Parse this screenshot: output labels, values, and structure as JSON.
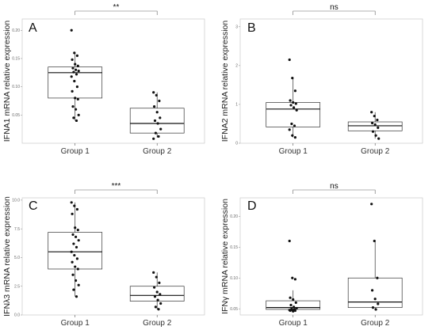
{
  "chart_data": [
    {
      "type": "box",
      "panel": "A",
      "ylabel": "IFNA1 mRNA relative expression",
      "ylim": [
        0.0,
        0.22
      ],
      "yticks": [
        "0.05",
        "0.10",
        "0.15",
        "0.20"
      ],
      "ytick_values": [
        0.05,
        0.1,
        0.15,
        0.2
      ],
      "categories": [
        "Group 1",
        "Group 2"
      ],
      "boxes": [
        {
          "group": "Group 1",
          "q1": 0.08,
          "median": 0.125,
          "q3": 0.135,
          "whisker_low": 0.04,
          "whisker_high": 0.16,
          "points": [
            0.2,
            0.16,
            0.155,
            0.148,
            0.14,
            0.137,
            0.133,
            0.13,
            0.128,
            0.126,
            0.122,
            0.118,
            0.11,
            0.1,
            0.092,
            0.08,
            0.078,
            0.065,
            0.06,
            0.05,
            0.045,
            0.04
          ]
        },
        {
          "group": "Group 2",
          "q1": 0.018,
          "median": 0.035,
          "q3": 0.062,
          "whisker_low": 0.01,
          "whisker_high": 0.09,
          "points": [
            0.09,
            0.085,
            0.075,
            0.065,
            0.055,
            0.045,
            0.04,
            0.035,
            0.025,
            0.018,
            0.012,
            0.008
          ]
        }
      ],
      "significance": "**"
    },
    {
      "type": "box",
      "panel": "B",
      "ylabel": "IFNA2 mRNA relative expression",
      "ylim": [
        0.0,
        3.2
      ],
      "yticks": [
        "0",
        "1",
        "2",
        "3"
      ],
      "ytick_values": [
        0,
        1,
        2,
        3
      ],
      "categories": [
        "Group 1",
        "Group 2"
      ],
      "boxes": [
        {
          "group": "Group 1",
          "q1": 0.42,
          "median": 0.88,
          "q3": 1.05,
          "whisker_low": 0.15,
          "whisker_high": 1.7,
          "points": [
            2.15,
            1.68,
            1.35,
            1.1,
            1.05,
            1.02,
            0.98,
            0.92,
            0.85,
            0.5,
            0.45,
            0.35,
            0.2,
            0.15
          ]
        },
        {
          "group": "Group 2",
          "q1": 0.32,
          "median": 0.45,
          "q3": 0.55,
          "whisker_low": 0.12,
          "whisker_high": 0.8,
          "points": [
            0.8,
            0.7,
            0.6,
            0.52,
            0.48,
            0.4,
            0.3,
            0.2,
            0.12
          ]
        }
      ],
      "significance": "ns"
    },
    {
      "type": "box",
      "panel": "C",
      "ylabel": "IFNλ3 mRNA relative expression",
      "ylim": [
        0.0,
        10.2
      ],
      "yticks": [
        "0.0",
        "2.5",
        "5.0",
        "7.5",
        "10.0"
      ],
      "ytick_values": [
        0,
        2.5,
        5,
        7.5,
        10
      ],
      "categories": [
        "Group 1",
        "Group 2"
      ],
      "boxes": [
        {
          "group": "Group 1",
          "q1": 4.0,
          "median": 5.5,
          "q3": 7.2,
          "whisker_low": 1.6,
          "whisker_high": 9.8,
          "points": [
            9.8,
            9.5,
            9.2,
            8.8,
            7.6,
            7.4,
            7.0,
            6.8,
            6.5,
            6.2,
            5.9,
            5.5,
            5.2,
            4.9,
            4.6,
            4.2,
            4.0,
            3.5,
            3.0,
            2.6,
            2.2,
            1.6
          ]
        },
        {
          "group": "Group 2",
          "q1": 1.2,
          "median": 1.7,
          "q3": 2.5,
          "whisker_low": 0.5,
          "whisker_high": 3.7,
          "points": [
            3.7,
            3.3,
            2.8,
            2.4,
            2.0,
            1.8,
            1.6,
            1.3,
            1.0,
            0.7,
            0.5
          ]
        }
      ],
      "significance": "***"
    },
    {
      "type": "box",
      "panel": "D",
      "ylabel": "IFNγ mRNA relative expression",
      "ylim": [
        0.04,
        0.23
      ],
      "yticks": [
        "0.05",
        "0.10",
        "0.15",
        "0.20"
      ],
      "ytick_values": [
        0.05,
        0.1,
        0.15,
        0.2
      ],
      "categories": [
        "Group 1",
        "Group 2"
      ],
      "boxes": [
        {
          "group": "Group 1",
          "q1": 0.049,
          "median": 0.052,
          "q3": 0.063,
          "whisker_low": 0.046,
          "whisker_high": 0.08,
          "points": [
            0.16,
            0.1,
            0.098,
            0.068,
            0.065,
            0.06,
            0.056,
            0.053,
            0.051,
            0.05,
            0.049,
            0.048,
            0.048,
            0.047,
            0.047,
            0.046
          ]
        },
        {
          "group": "Group 2",
          "q1": 0.052,
          "median": 0.061,
          "q3": 0.1,
          "whisker_low": 0.048,
          "whisker_high": 0.16,
          "points": [
            0.22,
            0.16,
            0.1,
            0.08,
            0.066,
            0.058,
            0.052,
            0.049
          ]
        }
      ],
      "significance": "ns"
    }
  ]
}
